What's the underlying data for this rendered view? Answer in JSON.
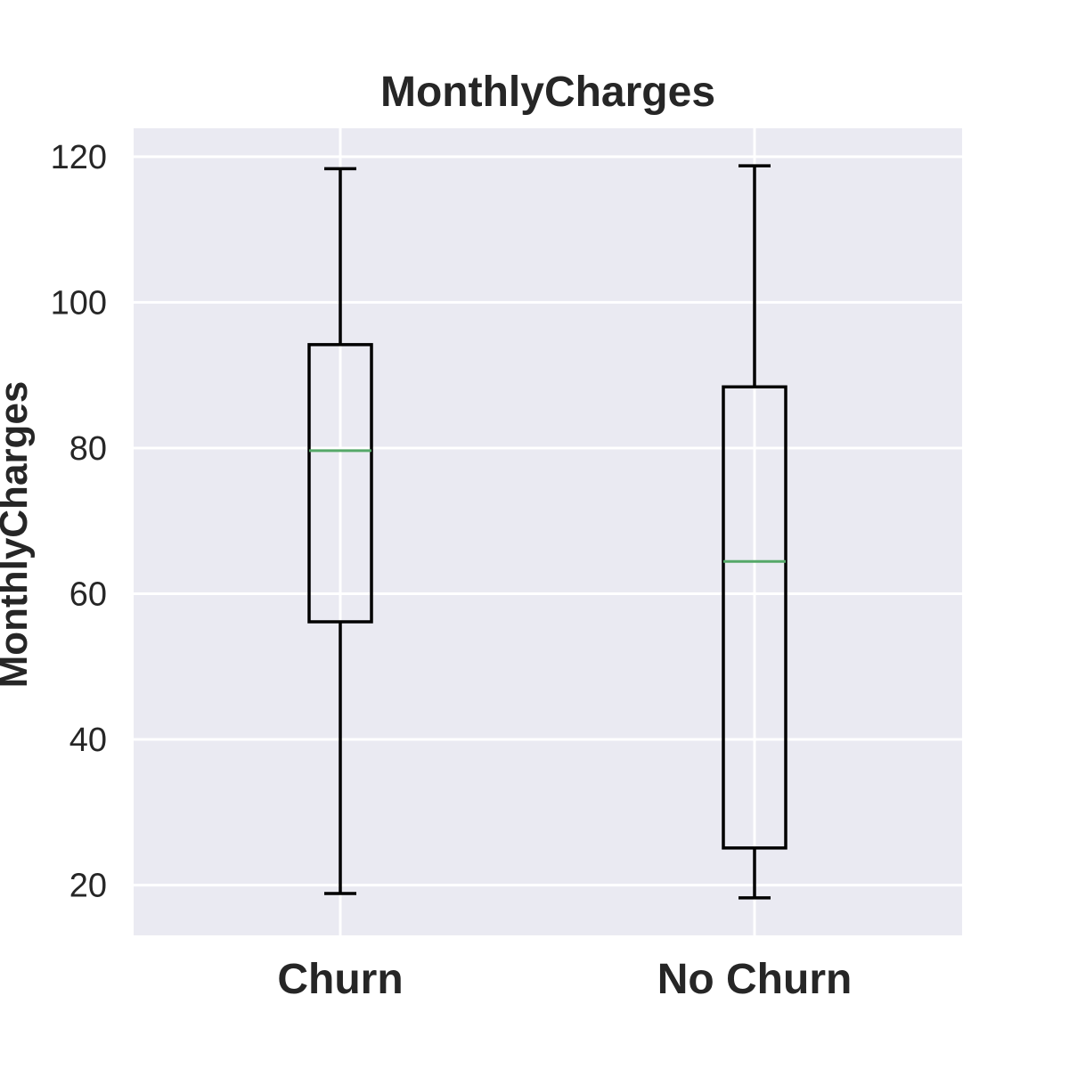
{
  "chart_data": {
    "type": "box",
    "title": "MonthlyCharges",
    "xlabel": "",
    "ylabel": "MonthlyCharges",
    "categories": [
      "Churn",
      "No Churn"
    ],
    "boxes": [
      {
        "category": "Churn",
        "whisker_low": 18.85,
        "q1": 56.15,
        "median": 79.65,
        "q3": 94.2,
        "whisker_high": 118.35
      },
      {
        "category": "No Churn",
        "whisker_low": 18.25,
        "q1": 25.1,
        "median": 64.43,
        "q3": 88.4,
        "whisker_high": 118.75
      }
    ],
    "yticks": [
      "20",
      "40",
      "60",
      "80",
      "100",
      "120"
    ],
    "yticks_values": [
      20,
      40,
      60,
      80,
      100,
      120
    ],
    "ylim": [
      13.1,
      123.9
    ],
    "grid": true,
    "legend": "none",
    "colors": {
      "plot_background": "#eaeaf2",
      "grid": "#ffffff",
      "box": "#000000",
      "median": "#55a868",
      "text": "#262626"
    }
  }
}
